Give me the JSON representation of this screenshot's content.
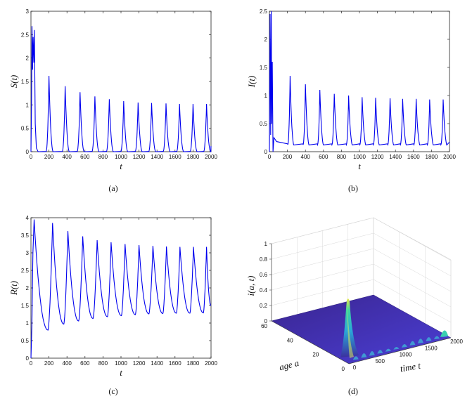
{
  "chart_data": [
    {
      "type": "line",
      "id": "a",
      "caption": "(a)",
      "xlabel": "t",
      "ylabel": "S(t)",
      "xlim": [
        0,
        2000
      ],
      "ylim": [
        0,
        3
      ],
      "xticks": [
        "0",
        "200",
        "400",
        "600",
        "800",
        "1000",
        "1200",
        "1400",
        "1600",
        "1800",
        "2000"
      ],
      "yticks": [
        "0",
        "0.5",
        "1",
        "1.5",
        "2",
        "2.5",
        "3"
      ],
      "color": "#0000ee",
      "grid": false,
      "transient": [
        [
          0,
          0.0
        ],
        [
          6,
          1.0
        ],
        [
          12,
          2.68
        ],
        [
          18,
          1.75
        ],
        [
          24,
          2.45
        ],
        [
          32,
          1.9
        ],
        [
          38,
          2.6
        ],
        [
          48,
          0.6
        ],
        [
          60,
          0.08
        ],
        [
          80,
          0.0
        ]
      ],
      "peaks": [
        [
          200,
          1.62
        ],
        [
          380,
          1.4
        ],
        [
          545,
          1.27
        ],
        [
          710,
          1.18
        ],
        [
          870,
          1.12
        ],
        [
          1030,
          1.08
        ],
        [
          1190,
          1.05
        ],
        [
          1340,
          1.04
        ],
        [
          1500,
          1.03
        ],
        [
          1650,
          1.02
        ],
        [
          1800,
          1.02
        ],
        [
          1950,
          1.02
        ]
      ],
      "baseline": 0.0,
      "end": [
        2000,
        0.12
      ]
    },
    {
      "type": "line",
      "id": "b",
      "caption": "(b)",
      "xlabel": "t",
      "ylabel": "I(t)",
      "xlim": [
        0,
        2000
      ],
      "ylim": [
        0,
        2.5
      ],
      "xticks": [
        "0",
        "200",
        "400",
        "600",
        "800",
        "1000",
        "1200",
        "1400",
        "1600",
        "1800",
        "2000"
      ],
      "yticks": [
        "0",
        "0.5",
        "1",
        "1.5",
        "2",
        "2.5"
      ],
      "color": "#0000ee",
      "grid": false,
      "transient": [
        [
          0,
          0.0
        ],
        [
          8,
          2.45
        ],
        [
          14,
          0.3
        ],
        [
          20,
          2.5
        ],
        [
          26,
          0.5
        ],
        [
          32,
          1.6
        ],
        [
          40,
          0.0
        ],
        [
          50,
          0.25
        ],
        [
          80,
          0.18
        ]
      ],
      "peaks": [
        [
          230,
          1.35
        ],
        [
          400,
          1.2
        ],
        [
          560,
          1.1
        ],
        [
          720,
          1.03
        ],
        [
          880,
          1.0
        ],
        [
          1030,
          0.97
        ],
        [
          1180,
          0.96
        ],
        [
          1340,
          0.95
        ],
        [
          1480,
          0.94
        ],
        [
          1630,
          0.94
        ],
        [
          1780,
          0.93
        ],
        [
          1930,
          0.93
        ]
      ],
      "baseline": 0.12,
      "end": [
        2000,
        0.17
      ]
    },
    {
      "type": "line",
      "id": "c",
      "caption": "(c)",
      "xlabel": "t",
      "ylabel": "R(t)",
      "xlim": [
        0,
        2000
      ],
      "ylim": [
        0,
        4
      ],
      "xticks": [
        "0",
        "200",
        "400",
        "600",
        "800",
        "1000",
        "1200",
        "1400",
        "1600",
        "1800",
        "2000"
      ],
      "yticks": [
        "0",
        "0.5",
        "1",
        "1.5",
        "2",
        "2.5",
        "3",
        "3.5",
        "4"
      ],
      "color": "#0000ee",
      "grid": false,
      "transient": [
        [
          0,
          0.0
        ],
        [
          4,
          0.35
        ],
        [
          10,
          0.9
        ],
        [
          22,
          3.0
        ],
        [
          35,
          3.95
        ]
      ],
      "peaks": [
        [
          35,
          3.95
        ],
        [
          240,
          3.85
        ],
        [
          410,
          3.62
        ],
        [
          575,
          3.47
        ],
        [
          735,
          3.36
        ],
        [
          890,
          3.3
        ],
        [
          1045,
          3.25
        ],
        [
          1200,
          3.22
        ],
        [
          1355,
          3.2
        ],
        [
          1505,
          3.18
        ],
        [
          1655,
          3.17
        ],
        [
          1805,
          3.17
        ],
        [
          1950,
          3.17
        ]
      ],
      "troughs": [
        [
          190,
          0.8
        ],
        [
          365,
          0.97
        ],
        [
          530,
          1.06
        ],
        [
          690,
          1.13
        ],
        [
          850,
          1.18
        ],
        [
          1005,
          1.21
        ],
        [
          1160,
          1.24
        ],
        [
          1310,
          1.26
        ],
        [
          1465,
          1.27
        ],
        [
          1615,
          1.28
        ],
        [
          1765,
          1.28
        ],
        [
          1915,
          1.29
        ]
      ],
      "end": [
        2000,
        1.5
      ]
    },
    {
      "type": "surface",
      "id": "d",
      "caption": "(d)",
      "zlabel": "i(a, t)",
      "xlabel": "age a",
      "ylabel": "time t",
      "zlim": [
        0,
        1
      ],
      "zticks": [
        "0",
        "0.2",
        "0.4",
        "0.6",
        "0.8",
        "1"
      ],
      "aticks": [
        "0",
        "20",
        "40",
        "60"
      ],
      "tticks": [
        "0",
        "500",
        "1000",
        "1500",
        "2000"
      ],
      "colormap": [
        "#3b1f8f",
        "#4a3fd0",
        "#2aa8d8",
        "#3cd6a0",
        "#e8e84a"
      ],
      "main_peak": {
        "t": 30,
        "a": 2,
        "z": 0.28
      },
      "ripple_count": 12
    }
  ]
}
